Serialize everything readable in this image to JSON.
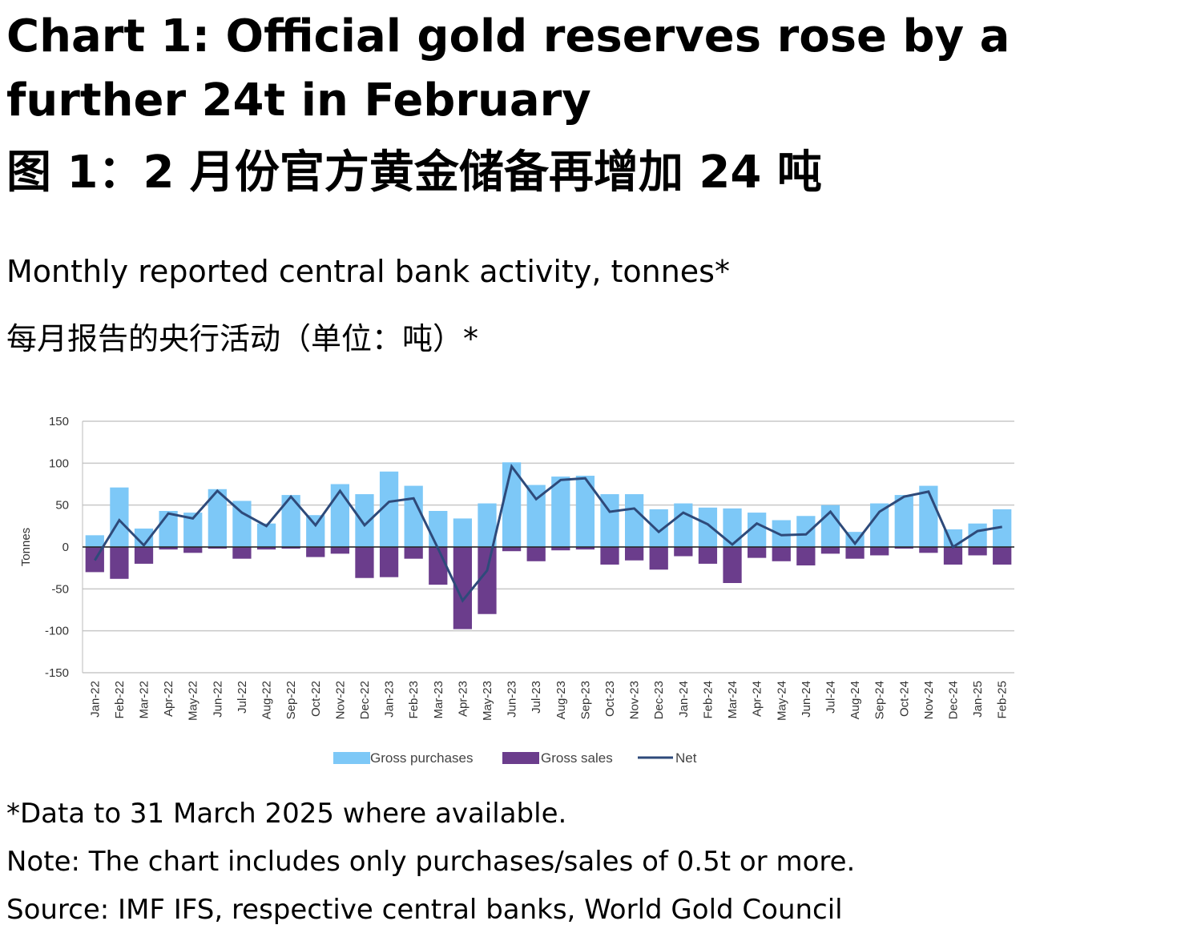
{
  "title": "Chart 1: Official gold reserves rose by a further 24t in February",
  "title_zh": "图 1：2 月份官方黄金储备再增加 24 吨",
  "subtitle": "Monthly reported central bank activity, tonnes*",
  "subtitle_zh": "每月报告的央行活动（单位：吨）*",
  "footnotes": {
    "data_note": "*Data to 31 March 2025 where available.",
    "note": "Note: The chart includes only purchases/sales of 0.5t or more.",
    "source": "Source: IMF IFS, respective central banks, World Gold Council"
  },
  "chart_data": {
    "type": "bar",
    "ylabel": "Tonnes",
    "ylim": [
      -150,
      150
    ],
    "yticks": [
      150,
      100,
      50,
      0,
      -50,
      -100,
      -150
    ],
    "grid": true,
    "legend_position": "bottom",
    "categories": [
      "Jan-22",
      "Feb-22",
      "Mar-22",
      "Apr-22",
      "May-22",
      "Jun-22",
      "Jul-22",
      "Aug-22",
      "Sep-22",
      "Oct-22",
      "Nov-22",
      "Dec-22",
      "Jan-23",
      "Feb-23",
      "Mar-23",
      "Apr-23",
      "May-23",
      "Jun-23",
      "Jul-23",
      "Aug-23",
      "Sep-23",
      "Oct-23",
      "Nov-23",
      "Dec-23",
      "Jan-24",
      "Feb-24",
      "Mar-24",
      "Apr-24",
      "May-24",
      "Jun-24",
      "Jul-24",
      "Aug-24",
      "Sep-24",
      "Oct-24",
      "Nov-24",
      "Dec-24",
      "Jan-25",
      "Feb-25"
    ],
    "series": [
      {
        "name": "Gross purchases",
        "type": "bar",
        "color": "#7dc8f7",
        "values": [
          14,
          71,
          22,
          43,
          41,
          69,
          55,
          28,
          62,
          38,
          75,
          63,
          90,
          73,
          43,
          34,
          52,
          101,
          74,
          84,
          85,
          63,
          63,
          45,
          52,
          47,
          46,
          41,
          32,
          37,
          50,
          18,
          52,
          62,
          73,
          21,
          28,
          45
        ]
      },
      {
        "name": "Gross sales",
        "type": "bar",
        "color": "#6b3d8c",
        "values": [
          -30,
          -38,
          -20,
          -3,
          -7,
          -2,
          -14,
          -3,
          -2,
          -12,
          -8,
          -37,
          -36,
          -14,
          -45,
          -98,
          -80,
          -5,
          -17,
          -4,
          -3,
          -21,
          -16,
          -27,
          -11,
          -20,
          -43,
          -13,
          -17,
          -22,
          -8,
          -14,
          -10,
          -2,
          -7,
          -21,
          -10,
          -21
        ]
      },
      {
        "name": "Net",
        "type": "line",
        "color": "#2e4a7a",
        "values": [
          -16,
          32,
          2,
          40,
          34,
          67,
          41,
          25,
          60,
          26,
          67,
          26,
          54,
          58,
          -2,
          -64,
          -28,
          96,
          57,
          80,
          82,
          42,
          46,
          18,
          41,
          27,
          3,
          28,
          14,
          15,
          42,
          4,
          42,
          60,
          66,
          0,
          19,
          24
        ]
      }
    ]
  }
}
